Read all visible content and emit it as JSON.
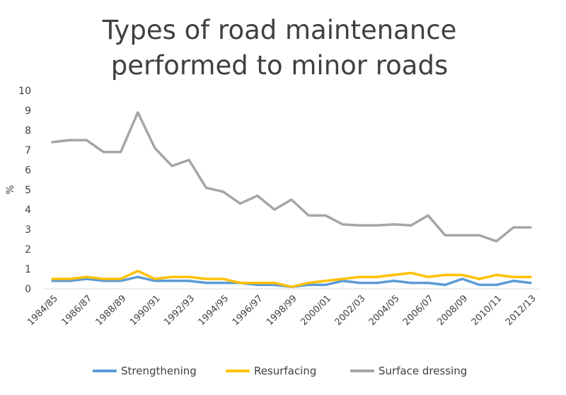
{
  "chart_data": {
    "type": "line",
    "title_lines": [
      "Types of road maintenance",
      "performed to minor roads"
    ],
    "ylabel": "%",
    "xlabel": "",
    "ylim": [
      0,
      10
    ],
    "yticks": [
      "0",
      "1",
      "2",
      "3",
      "4",
      "5",
      "6",
      "7",
      "8",
      "9",
      "10"
    ],
    "grid": false,
    "legend_position": "bottom",
    "categories": [
      "1984/85",
      "1985/86",
      "1986/87",
      "1987/88",
      "1988/89",
      "1989/90",
      "1990/91",
      "1991/92",
      "1992/93",
      "1993/94",
      "1994/95",
      "1995/96",
      "1996/97",
      "1997/98",
      "1998/99",
      "1999/00",
      "2000/01",
      "2001/02",
      "2002/03",
      "2003/04",
      "2004/05",
      "2005/06",
      "2006/07",
      "2007/08",
      "2008/09",
      "2009/10",
      "2010/11",
      "2011/12",
      "2012/13"
    ],
    "tick_labels": [
      "1984/85",
      "1986/87",
      "1988/89",
      "1990/91",
      "1992/93",
      "1994/95",
      "1996/97",
      "1998/99",
      "2000/01",
      "2002/03",
      "2004/05",
      "2006/07",
      "2008/09",
      "2010/11",
      "2012/13"
    ],
    "series": [
      {
        "name": "Strengthening",
        "color": "#5b9bd5",
        "values": [
          0.4,
          0.4,
          0.5,
          0.4,
          0.4,
          0.6,
          0.4,
          0.4,
          0.4,
          0.3,
          0.3,
          0.3,
          0.2,
          0.2,
          0.1,
          0.2,
          0.2,
          0.4,
          0.3,
          0.3,
          0.4,
          0.3,
          0.3,
          0.2,
          0.5,
          0.2,
          0.2,
          0.4,
          0.3
        ]
      },
      {
        "name": "Resurfacing",
        "color": "#ffc000",
        "values": [
          0.5,
          0.5,
          0.6,
          0.5,
          0.5,
          0.9,
          0.5,
          0.6,
          0.6,
          0.5,
          0.5,
          0.3,
          0.3,
          0.3,
          0.1,
          0.3,
          0.4,
          0.5,
          0.6,
          0.6,
          0.7,
          0.8,
          0.6,
          0.7,
          0.7,
          0.5,
          0.7,
          0.6,
          0.6
        ]
      },
      {
        "name": "Surface dressing",
        "color": "#a5a5a5",
        "values": [
          7.4,
          7.5,
          7.5,
          6.9,
          6.9,
          8.9,
          7.1,
          6.2,
          6.5,
          5.1,
          4.9,
          4.3,
          4.7,
          4.0,
          4.5,
          3.7,
          3.7,
          3.25,
          3.2,
          3.2,
          3.25,
          3.2,
          3.7,
          2.7,
          2.7,
          2.7,
          2.4,
          3.1,
          3.1
        ]
      }
    ]
  }
}
